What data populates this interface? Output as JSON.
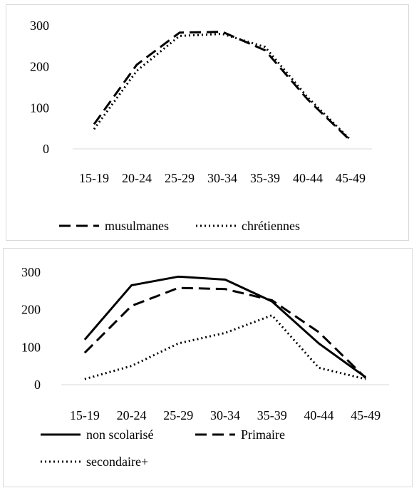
{
  "chart_data": [
    {
      "type": "line",
      "title": "",
      "xlabel": "",
      "ylabel": "",
      "categories": [
        "15-19",
        "20-24",
        "25-29",
        "30-34",
        "35-39",
        "40-44",
        "45-49"
      ],
      "yticks": [
        "0",
        "100",
        "200",
        "300"
      ],
      "ylim": [
        0,
        300
      ],
      "grid": false,
      "legend_position": "bottom",
      "series": [
        {
          "name": "musulmanes",
          "values": [
            60,
            205,
            283,
            285,
            240,
            120,
            20
          ],
          "style": "dashed",
          "color": "#000000"
        },
        {
          "name": "chrétiennes",
          "values": [
            48,
            190,
            275,
            280,
            248,
            125,
            22
          ],
          "style": "dotted",
          "color": "#000000"
        }
      ]
    },
    {
      "type": "line",
      "title": "",
      "xlabel": "",
      "ylabel": "",
      "categories": [
        "15-19",
        "20-24",
        "25-29",
        "30-34",
        "35-39",
        "40-44",
        "45-49"
      ],
      "yticks": [
        "0",
        "100",
        "200",
        "300"
      ],
      "ylim": [
        0,
        300
      ],
      "grid": false,
      "legend_position": "bottom",
      "series": [
        {
          "name": "non scolarisé",
          "values": [
            120,
            265,
            288,
            280,
            222,
            110,
            20
          ],
          "style": "solid",
          "color": "#000000"
        },
        {
          "name": "Primaire",
          "values": [
            85,
            210,
            258,
            255,
            225,
            140,
            18
          ],
          "style": "dashed",
          "color": "#000000"
        },
        {
          "name": "secondaire+",
          "values": [
            15,
            50,
            110,
            138,
            185,
            45,
            15
          ],
          "style": "dotted",
          "color": "#000000"
        }
      ]
    }
  ]
}
